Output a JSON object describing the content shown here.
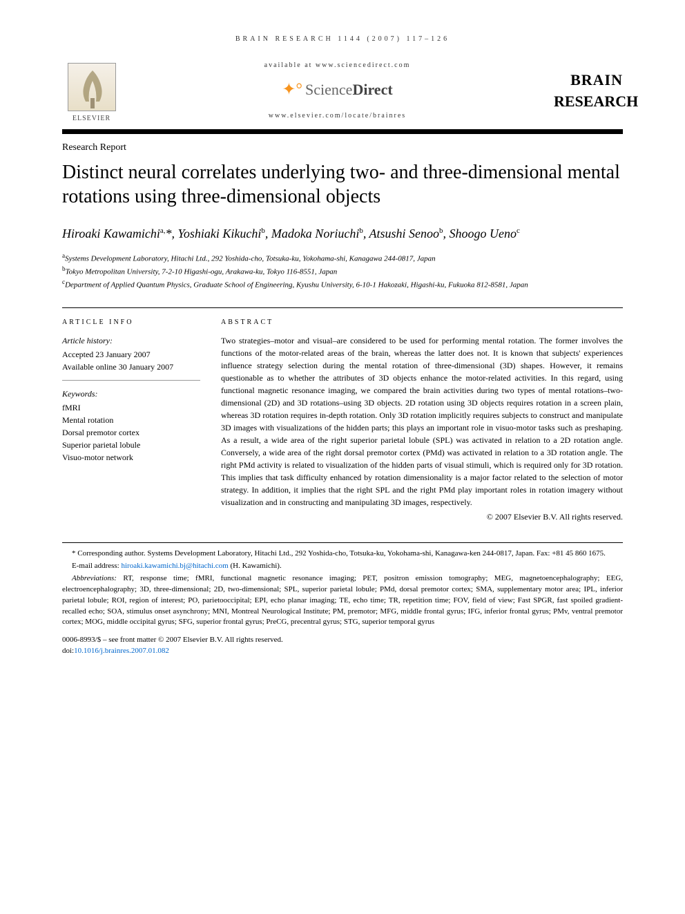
{
  "running_head": "BRAIN RESEARCH 1144 (2007) 117–126",
  "masthead": {
    "available_text": "available at www.sciencedirect.com",
    "sd_label_1": "Science",
    "sd_label_2": "Direct",
    "journal_url": "www.elsevier.com/locate/brainres",
    "elsevier_label": "ELSEVIER",
    "journal_name_1": "BRAIN",
    "journal_name_2": "RESEARCH"
  },
  "article_type": "Research Report",
  "title": "Distinct neural correlates underlying two- and three-dimensional mental rotations using three-dimensional objects",
  "authors_html": "Hiroaki Kawamichi<sup>a,</sup>*, Yoshiaki Kikuchi<sup>b</sup>, Madoka Noriuchi<sup>b</sup>, Atsushi Senoo<sup>b</sup>, Shoogo Ueno<sup>c</sup>",
  "affiliations": [
    "<sup>a</sup>Systems Development Laboratory, Hitachi Ltd., 292 Yoshida-cho, Totsuka-ku, Yokohama-shi, Kanagawa 244-0817, Japan",
    "<sup>b</sup>Tokyo Metropolitan University, 7-2-10 Higashi-ogu, Arakawa-ku, Tokyo 116-8551, Japan",
    "<sup>c</sup>Department of Applied Quantum Physics, Graduate School of Engineering, Kyushu University, 6-10-1 Hakozaki, Higashi-ku, Fukuoka 812-8581, Japan"
  ],
  "article_info": {
    "heading": "ARTICLE INFO",
    "history_label": "Article history:",
    "accepted": "Accepted 23 January 2007",
    "online": "Available online 30 January 2007",
    "keywords_label": "Keywords:",
    "keywords": [
      "fMRI",
      "Mental rotation",
      "Dorsal premotor cortex",
      "Superior parietal lobule",
      "Visuo-motor network"
    ]
  },
  "abstract": {
    "heading": "ABSTRACT",
    "text": "Two strategies–motor and visual–are considered to be used for performing mental rotation. The former involves the functions of the motor-related areas of the brain, whereas the latter does not. It is known that subjects' experiences influence strategy selection during the mental rotation of three-dimensional (3D) shapes. However, it remains questionable as to whether the attributes of 3D objects enhance the motor-related activities. In this regard, using functional magnetic resonance imaging, we compared the brain activities during two types of mental rotations–two-dimensional (2D) and 3D rotations–using 3D objects. 2D rotation using 3D objects requires rotation in a screen plain, whereas 3D rotation requires in-depth rotation. Only 3D rotation implicitly requires subjects to construct and manipulate 3D images with visualizations of the hidden parts; this plays an important role in visuo-motor tasks such as preshaping. As a result, a wide area of the right superior parietal lobule (SPL) was activated in relation to a 2D rotation angle. Conversely, a wide area of the right dorsal premotor cortex (PMd) was activated in relation to a 3D rotation angle. The right PMd activity is related to visualization of the hidden parts of visual stimuli, which is required only for 3D rotation. This implies that task difficulty enhanced by rotation dimensionality is a major factor related to the selection of motor strategy. In addition, it implies that the right SPL and the right PMd play important roles in rotation imagery without visualization and in constructing and manipulating 3D images, respectively.",
    "copyright": "© 2007 Elsevier B.V. All rights reserved."
  },
  "footnotes": {
    "corresponding": "* Corresponding author. Systems Development Laboratory, Hitachi Ltd., 292 Yoshida-cho, Totsuka-ku, Yokohama-shi, Kanagawa-ken 244-0817, Japan. Fax: +81 45 860 1675.",
    "email_label": "E-mail address: ",
    "email": "hiroaki.kawamichi.bj@hitachi.com",
    "email_author": " (H. Kawamichi).",
    "abbrev_label": "Abbreviations: ",
    "abbrev_text": "RT, response time; fMRI, functional magnetic resonance imaging; PET, positron emission tomography; MEG, magnetoencephalography; EEG, electroencephalography; 3D, three-dimensional; 2D, two-dimensional; SPL, superior parietal lobule; PMd, dorsal premotor cortex; SMA, supplementary motor area; IPL, inferior parietal lobule; ROI, region of interest; PO, parietooccipital; EPI, echo planar imaging; TE, echo time; TR, repetition time; FOV, field of view; Fast SPGR, fast spoiled gradient-recalled echo; SOA, stimulus onset asynchrony; MNI, Montreal Neurological Institute; PM, premotor; MFG, middle frontal gyrus; IFG, inferior frontal gyrus; PMv, ventral premotor cortex; MOG, middle occipital gyrus; SFG, superior frontal gyrus; PreCG, precentral gyrus; STG, superior temporal gyrus"
  },
  "footer": {
    "front_matter": "0006-8993/$ – see front matter © 2007 Elsevier B.V. All rights reserved.",
    "doi_label": "doi:",
    "doi": "10.1016/j.brainres.2007.01.082"
  },
  "colors": {
    "text": "#000000",
    "link": "#0066cc",
    "rule": "#000000",
    "sd_orange": "#f7941e",
    "sd_grey": "#666666"
  }
}
